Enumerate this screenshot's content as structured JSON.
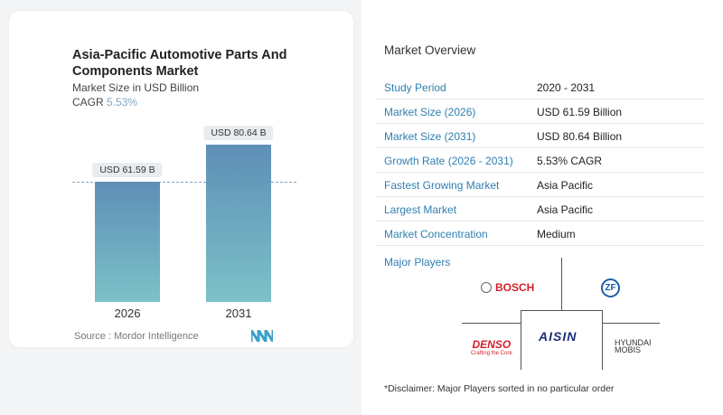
{
  "chart_data": {
    "type": "bar",
    "title": "Asia-Pacific Automotive Parts And Components Market",
    "subtitle": "Market Size in USD Billion",
    "cagr_label": "CAGR",
    "cagr_value": "5.53%",
    "categories": [
      "2026",
      "2031"
    ],
    "values": [
      61.59,
      80.64
    ],
    "data_labels": [
      "USD 61.59 B",
      "USD 80.64 B"
    ],
    "ylim": [
      0,
      80.64
    ],
    "colors": {
      "top": "#5e8fb6",
      "bottom": "#7cc1c8"
    },
    "source": "Source :  Mordor Intelligence"
  },
  "overview": {
    "title": "Market Overview",
    "rows": [
      {
        "k": "Study Period",
        "v": "2020 - 2031"
      },
      {
        "k": "Market Size (2026)",
        "v": "USD 61.59 Billion"
      },
      {
        "k": "Market Size (2031)",
        "v": "USD 80.64 Billion"
      },
      {
        "k": "Growth Rate (2026 - 2031)",
        "v": "5.53% CAGR"
      },
      {
        "k": "Fastest Growing Market",
        "v": "Asia Pacific"
      },
      {
        "k": "Largest Market",
        "v": "Asia Pacific"
      },
      {
        "k": "Market Concentration",
        "v": "Medium"
      }
    ],
    "major_players_title": "Major Players",
    "players": [
      "BOSCH",
      "ZF",
      "DENSO",
      "AISIN",
      "HYUNDAI MOBIS"
    ],
    "denso_tagline": "Crafting the Core",
    "disclaimer": "*Disclaimer: Major Players sorted in no particular order"
  }
}
